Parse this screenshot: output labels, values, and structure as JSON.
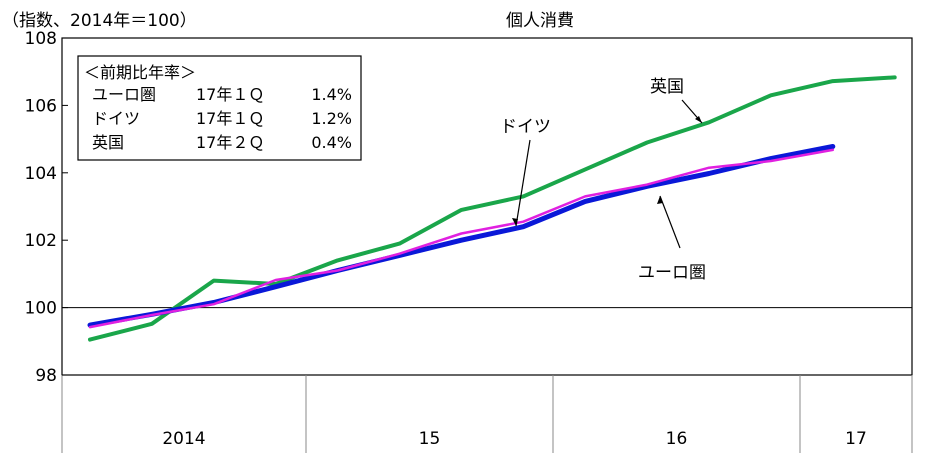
{
  "chart_data": {
    "type": "line",
    "title": "個人消費",
    "ylabel": "（指数、2014年＝100）",
    "xlabel": "",
    "ylim": [
      98,
      108
    ],
    "yticks": [
      "98",
      "100",
      "102",
      "104",
      "106",
      "108"
    ],
    "year_labels": [
      "2014",
      "15",
      "16",
      "17"
    ],
    "x_quarters": [
      "2014Q1",
      "2014Q2",
      "2014Q3",
      "2014Q4",
      "2015Q1",
      "2015Q2",
      "2015Q3",
      "2015Q4",
      "2016Q1",
      "2016Q2",
      "2016Q3",
      "2016Q4",
      "2017Q1",
      "2017Q2"
    ],
    "series": [
      {
        "name": "英国",
        "color": "#1aa64a",
        "values": [
          99.05,
          99.52,
          100.8,
          100.7,
          101.4,
          101.9,
          102.9,
          103.3,
          104.1,
          104.9,
          105.5,
          106.3,
          106.72,
          106.83
        ]
      },
      {
        "name": "ドイツ",
        "color": "#e020e0",
        "values": [
          99.42,
          99.78,
          100.1,
          100.82,
          101.1,
          101.6,
          102.2,
          102.55,
          103.3,
          103.65,
          104.15,
          104.35,
          104.68,
          null
        ]
      },
      {
        "name": "ユーロ圏",
        "color": "#0a18d8",
        "values": [
          99.48,
          99.8,
          100.15,
          100.62,
          101.1,
          101.55,
          102.0,
          102.4,
          103.15,
          103.6,
          103.98,
          104.42,
          104.78,
          null
        ]
      }
    ],
    "reference_line": 100,
    "legend": {
      "header": "＜前期比年率＞",
      "rows": [
        {
          "label": "ユーロ圏",
          "period": "17年１Ｑ",
          "value": "1.4%"
        },
        {
          "label": "ドイツ",
          "period": "17年１Ｑ",
          "value": "1.2%"
        },
        {
          "label": "英国",
          "period": "17年２Ｑ",
          "value": "0.4%"
        }
      ]
    },
    "annotations": {
      "uk": "英国",
      "de": "ドイツ",
      "ez": "ユーロ圏"
    },
    "grid": false,
    "legend_placement": "top-left"
  }
}
